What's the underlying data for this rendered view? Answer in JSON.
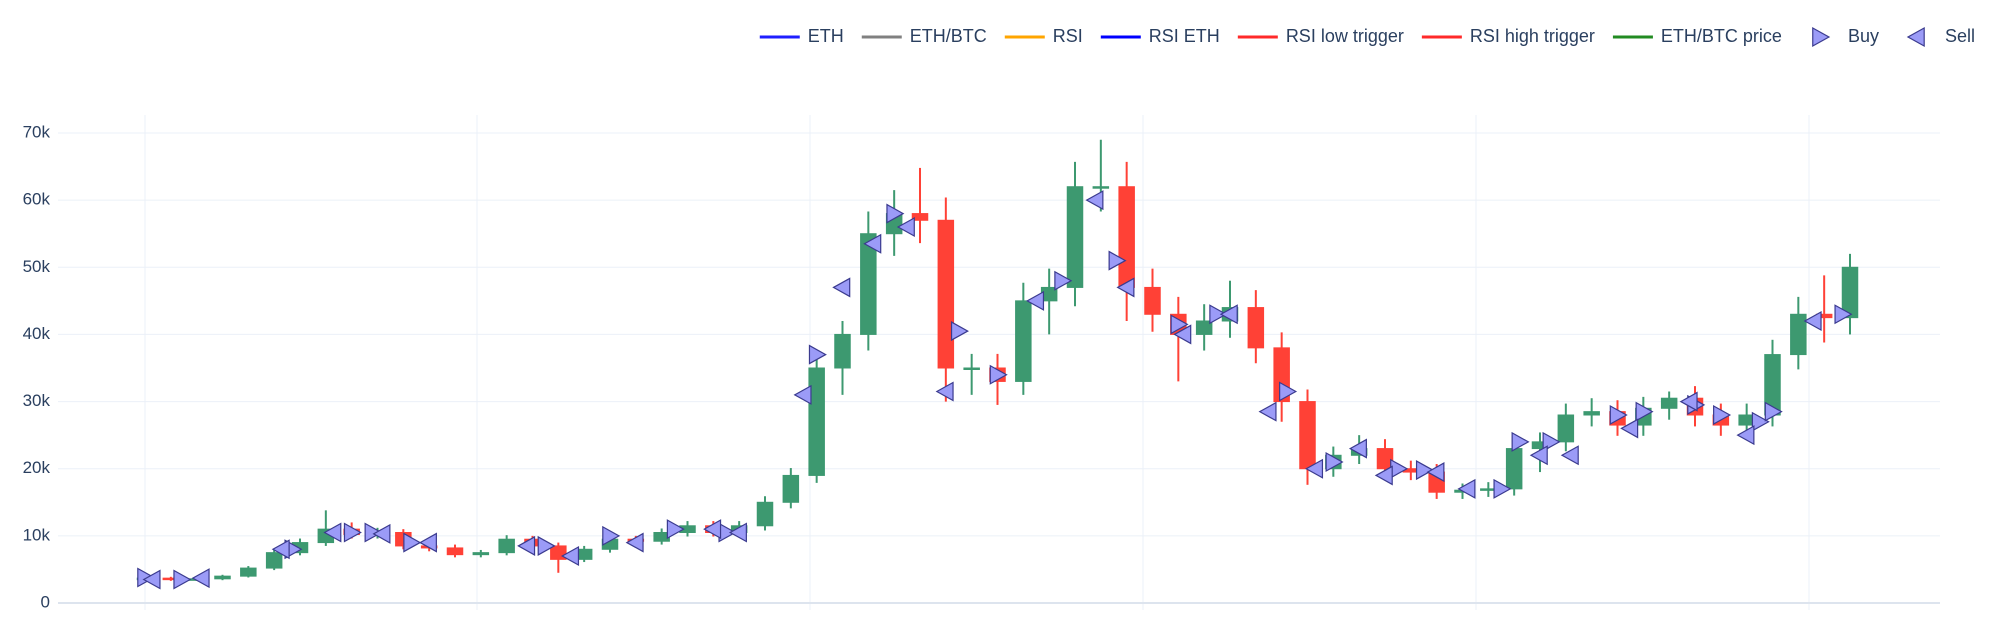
{
  "chart_data": {
    "type": "candlestick",
    "ylim": [
      -1000,
      71500
    ],
    "yticks": [
      0,
      {
        "value": 10000,
        "label": "10k"
      },
      {
        "value": 20000,
        "label": "20k"
      },
      {
        "value": 30000,
        "label": "30k"
      },
      {
        "value": 40000,
        "label": "40k"
      },
      {
        "value": 50000,
        "label": "50k"
      },
      {
        "value": 60000,
        "label": "60k"
      },
      {
        "value": 70000,
        "label": "70k"
      }
    ],
    "grid": true,
    "legend": "top-right",
    "increasing_color": "#3d9970",
    "decreasing_color": "#ff4136",
    "open": [
      3600,
      3700,
      3500,
      3600,
      4000,
      5200,
      7500,
      9000,
      11000,
      10200,
      10500,
      8500,
      8200,
      7200,
      7500,
      9500,
      8500,
      6500,
      8000,
      9500,
      9200,
      10500,
      11500,
      10500,
      11500,
      15000,
      19000,
      35000,
      40000,
      55000,
      58000,
      57000,
      35000,
      35000,
      33000,
      45000,
      47000,
      62000,
      62000,
      47000,
      43000,
      40000,
      42000,
      44000,
      38000,
      30000,
      20000,
      22000,
      23000,
      20000,
      19500,
      16500,
      16800,
      17000,
      23000,
      24000,
      28000,
      28500,
      26500,
      29000,
      30500,
      28000,
      26500,
      28000,
      37000,
      43000,
      42500
    ],
    "high": [
      3900,
      3900,
      3800,
      4200,
      5500,
      8000,
      9600,
      13800,
      12000,
      11200,
      11000,
      9000,
      8700,
      7900,
      10100,
      10000,
      9000,
      8500,
      10100,
      10000,
      11100,
      12200,
      12200,
      12200,
      15900,
      20100,
      37100,
      42000,
      58300,
      61500,
      64800,
      60400,
      37100,
      37100,
      47700,
      49800,
      65700,
      69000,
      65700,
      49800,
      45600,
      44500,
      48000,
      46600,
      40300,
      31800,
      23300,
      25000,
      24400,
      21200,
      20700,
      17800,
      18000,
      24400,
      25400,
      29700,
      30500,
      30200,
      30700,
      31500,
      32300,
      29700,
      29700,
      39200,
      45600,
      48800,
      52000
    ],
    "low": [
      3400,
      3300,
      3300,
      3400,
      3800,
      4900,
      7100,
      8500,
      9600,
      9600,
      8000,
      7700,
      6800,
      6800,
      7100,
      8000,
      4500,
      6100,
      7500,
      8700,
      8700,
      9900,
      9900,
      9900,
      10800,
      14100,
      17900,
      31000,
      37600,
      51700,
      53600,
      30000,
      31000,
      29500,
      31000,
      40000,
      44200,
      58300,
      42000,
      40400,
      33000,
      37600,
      39500,
      35700,
      27000,
      17600,
      18800,
      20700,
      18800,
      18300,
      15500,
      15500,
      15800,
      16000,
      19500,
      22600,
      26300,
      24900,
      24900,
      27300,
      26300,
      24900,
      24900,
      26300,
      34800,
      38800,
      40000
    ],
    "close": [
      3700,
      3500,
      3600,
      4000,
      5200,
      7500,
      9000,
      11000,
      10200,
      10500,
      8500,
      8200,
      7200,
      7500,
      9500,
      8500,
      6500,
      8000,
      9500,
      9200,
      10500,
      11500,
      10500,
      11500,
      15000,
      19000,
      35000,
      40000,
      55000,
      58000,
      57000,
      35000,
      35000,
      33000,
      45000,
      47000,
      62000,
      62000,
      47000,
      43000,
      40000,
      42000,
      44000,
      38000,
      30000,
      20000,
      22000,
      23000,
      20000,
      19500,
      16500,
      16800,
      17000,
      23000,
      24000,
      28000,
      28500,
      26500,
      29000,
      30500,
      28000,
      26500,
      28000,
      37000,
      43000,
      42500,
      50000
    ],
    "series": [
      {
        "name": "ETH",
        "color": "#1f1fff"
      },
      {
        "name": "ETH/BTC",
        "color": "#808080"
      },
      {
        "name": "RSI",
        "color": "#ffa500"
      },
      {
        "name": "RSI ETH",
        "color": "#0000ff"
      },
      {
        "name": "RSI low trigger",
        "color": "#ff2a2a"
      },
      {
        "name": "RSI high trigger",
        "color": "#ff2a2a"
      },
      {
        "name": "ETH/BTC price",
        "color": "#228b22"
      }
    ],
    "markers": [
      {
        "name": "Buy",
        "symbol": "triangle-right",
        "color": "#9b9bf7",
        "x": [
          0,
          1.4,
          5.7,
          8,
          8.8,
          10.3,
          15.5,
          18,
          20.5,
          22.5,
          26,
          29,
          31.5,
          33,
          35.5,
          37.6,
          40,
          41.5,
          44.2,
          46,
          48.5,
          49.5,
          52.5,
          53.2,
          54.4,
          57,
          58,
          60,
          61,
          62.5,
          63,
          65.7
        ],
        "y": [
          3800,
          3500,
          8000,
          10500,
          10500,
          9000,
          8500,
          10000,
          11000,
          10500,
          37000,
          58000,
          40500,
          34000,
          48000,
          51000,
          41500,
          43000,
          31500,
          21000,
          20000,
          19800,
          17000,
          24000,
          24000,
          28000,
          28500,
          29500,
          28000,
          27000,
          28500,
          43000
        ]
      },
      {
        "name": "Sell",
        "symbol": "triangle-left",
        "color": "#9b9bf7",
        "x": [
          0.3,
          2.2,
          5.3,
          7.3,
          9.2,
          11,
          14.8,
          16.5,
          19,
          22,
          23,
          25.5,
          27,
          28.2,
          29.5,
          31,
          34.5,
          36.8,
          38,
          40.2,
          42,
          43.5,
          45.3,
          47,
          48,
          50,
          51.2,
          54,
          55.2,
          57.5,
          59.8,
          62,
          64.6
        ],
        "y": [
          3500,
          3700,
          8000,
          10500,
          10300,
          9000,
          8500,
          7000,
          9000,
          11000,
          10500,
          31000,
          47000,
          53500,
          56000,
          31500,
          45000,
          60000,
          47000,
          40000,
          43000,
          28500,
          20000,
          23000,
          19000,
          19500,
          17000,
          22000,
          22000,
          26000,
          30000,
          25000,
          42000
        ]
      }
    ]
  }
}
